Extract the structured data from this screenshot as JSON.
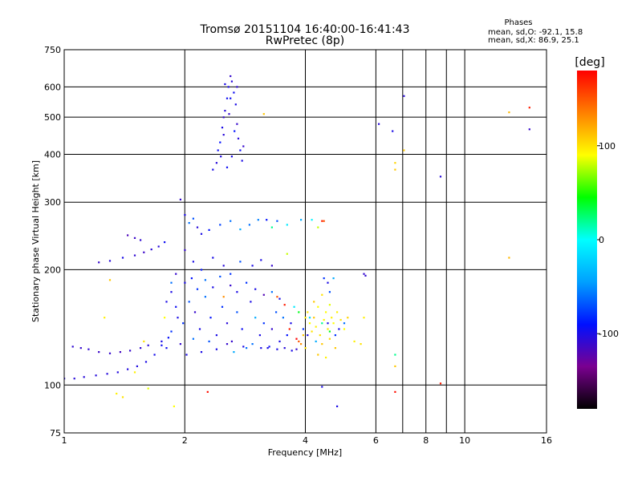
{
  "chart_data": {
    "type": "scatter",
    "title": "Tromsø 20151104 16:40:00-16:41:43",
    "subtitle": "RwPretec (8p)",
    "stats": {
      "heading": "Phases",
      "line_o": "mean, sd,O: -92.1, 15.8",
      "line_x": "mean, sd,X:  86.9, 25.1"
    },
    "xlabel": "Frequency [MHz]",
    "ylabel": "Stationary phase Virtual Height [km]",
    "x_scale": "log",
    "y_scale": "log",
    "xlim": [
      1,
      16
    ],
    "ylim": [
      75,
      750
    ],
    "x_ticks": [
      1,
      2,
      4,
      6,
      8,
      10,
      16
    ],
    "x_tick_labels": [
      "1",
      "2",
      "4",
      "6",
      "8",
      "10",
      "16"
    ],
    "x_grid": [
      2,
      4,
      6,
      7,
      8,
      9,
      10
    ],
    "y_ticks": [
      75,
      100,
      200,
      300,
      400,
      500,
      600,
      750
    ],
    "y_tick_labels": [
      "75",
      "100",
      "200",
      "300",
      "400",
      "500",
      "600",
      "750"
    ],
    "grid": true,
    "colorbar": {
      "label": "[deg]",
      "range": [
        -180,
        180
      ],
      "ticks": [
        100,
        0,
        -100
      ],
      "tick_labels": [
        "100",
        "0",
        "-100"
      ],
      "colors": [
        "#000000",
        "#7a0090",
        "#0010ff",
        "#00a0ff",
        "#00ffff",
        "#00ff00",
        "#ffff00",
        "#ff8000",
        "#ff0000"
      ]
    },
    "series": [
      {
        "points": [
          [
            1.0,
            104,
            -105
          ],
          [
            1.06,
            104,
            -105
          ],
          [
            1.12,
            105,
            -105
          ],
          [
            1.2,
            106,
            -104
          ],
          [
            1.28,
            107,
            -104
          ],
          [
            1.36,
            108,
            -103
          ],
          [
            1.44,
            110,
            -103
          ],
          [
            1.52,
            112,
            -102
          ],
          [
            1.6,
            115,
            -100
          ],
          [
            1.68,
            120,
            -98
          ],
          [
            1.75,
            127,
            -95
          ],
          [
            1.82,
            133,
            -92
          ],
          [
            1.05,
            126,
            -108
          ],
          [
            1.1,
            125,
            -110
          ],
          [
            1.15,
            124,
            -108
          ],
          [
            1.22,
            122,
            -112
          ],
          [
            1.3,
            121,
            -110
          ],
          [
            1.38,
            122,
            -115
          ],
          [
            1.46,
            123,
            -110
          ],
          [
            1.55,
            125,
            -108
          ],
          [
            1.62,
            127,
            -106
          ],
          [
            1.22,
            209,
            -110
          ],
          [
            1.3,
            211,
            -105
          ],
          [
            1.4,
            215,
            -100
          ],
          [
            1.5,
            218,
            -108
          ],
          [
            1.58,
            222,
            -112
          ],
          [
            1.65,
            226,
            -106
          ],
          [
            1.72,
            230,
            -105
          ],
          [
            1.78,
            236,
            -95
          ],
          [
            1.44,
            246,
            -118
          ],
          [
            1.5,
            242,
            -112
          ],
          [
            1.55,
            239,
            -108
          ],
          [
            1.26,
            150,
            95
          ],
          [
            1.3,
            188,
            110
          ],
          [
            1.35,
            95,
            95
          ],
          [
            1.4,
            93,
            100
          ],
          [
            1.5,
            108,
            95
          ],
          [
            1.58,
            130,
            100
          ],
          [
            1.62,
            98,
            85
          ],
          [
            1.88,
            88,
            90
          ],
          [
            2.28,
            96,
            175
          ],
          [
            6.7,
            96,
            175
          ],
          [
            8.7,
            101,
            170
          ],
          [
            4.8,
            88,
            -100
          ],
          [
            4.4,
            99,
            -100
          ],
          [
            2.35,
            365,
            -100
          ],
          [
            2.4,
            380,
            -105
          ],
          [
            2.42,
            410,
            -95
          ],
          [
            2.45,
            430,
            -90
          ],
          [
            2.48,
            470,
            -100
          ],
          [
            2.5,
            500,
            -110
          ],
          [
            2.52,
            520,
            -105
          ],
          [
            2.55,
            560,
            -95
          ],
          [
            2.57,
            600,
            -100
          ],
          [
            2.6,
            640,
            -110
          ],
          [
            2.62,
            620,
            -105
          ],
          [
            2.65,
            580,
            -95
          ],
          [
            2.68,
            540,
            -100
          ],
          [
            2.7,
            480,
            -110
          ],
          [
            2.72,
            440,
            -105
          ],
          [
            2.75,
            410,
            -95
          ],
          [
            2.78,
            385,
            -100
          ],
          [
            2.8,
            420,
            -110
          ],
          [
            2.55,
            370,
            -95
          ],
          [
            2.62,
            395,
            -100
          ],
          [
            2.5,
            450,
            -105
          ],
          [
            2.58,
            510,
            -110
          ],
          [
            2.66,
            460,
            -90
          ],
          [
            2.7,
            600,
            -108
          ],
          [
            2.52,
            610,
            -100
          ],
          [
            2.46,
            395,
            -102
          ],
          [
            2.6,
            560,
            -96
          ],
          [
            1.95,
            305,
            -110
          ],
          [
            2.0,
            278,
            -100
          ],
          [
            2.05,
            265,
            -60
          ],
          [
            2.1,
            272,
            -70
          ],
          [
            2.15,
            258,
            -105
          ],
          [
            2.2,
            248,
            -100
          ],
          [
            2.3,
            254,
            -90
          ],
          [
            2.45,
            262,
            -75
          ],
          [
            2.6,
            268,
            -60
          ],
          [
            2.75,
            255,
            -40
          ],
          [
            2.9,
            262,
            -60
          ],
          [
            3.05,
            270,
            -55
          ],
          [
            3.2,
            270,
            -90
          ],
          [
            3.3,
            258,
            20
          ],
          [
            3.4,
            268,
            -70
          ],
          [
            3.6,
            262,
            -10
          ],
          [
            3.9,
            270,
            -40
          ],
          [
            4.15,
            270,
            -5
          ],
          [
            4.45,
            268,
            150
          ],
          [
            4.3,
            258,
            80
          ],
          [
            2.0,
            225,
            -110
          ],
          [
            2.1,
            210,
            -100
          ],
          [
            2.2,
            200,
            -90
          ],
          [
            2.35,
            215,
            -100
          ],
          [
            2.5,
            205,
            -105
          ],
          [
            2.6,
            195,
            -80
          ],
          [
            2.75,
            210,
            -70
          ],
          [
            2.95,
            205,
            -100
          ],
          [
            3.1,
            212,
            -100
          ],
          [
            3.3,
            205,
            -110
          ],
          [
            3.6,
            220,
            80
          ],
          [
            1.85,
            175,
            -100
          ],
          [
            1.9,
            160,
            -95
          ],
          [
            1.92,
            150,
            -100
          ],
          [
            1.98,
            145,
            -80
          ],
          [
            2.05,
            165,
            -70
          ],
          [
            2.12,
            155,
            -110
          ],
          [
            2.18,
            140,
            -100
          ],
          [
            2.25,
            170,
            -60
          ],
          [
            2.32,
            150,
            -90
          ],
          [
            2.4,
            135,
            -100
          ],
          [
            2.48,
            160,
            -80
          ],
          [
            2.55,
            145,
            -105
          ],
          [
            2.62,
            130,
            -110
          ],
          [
            2.7,
            155,
            -70
          ],
          [
            2.78,
            140,
            -95
          ],
          [
            2.85,
            125,
            -60
          ],
          [
            2.92,
            165,
            -100
          ],
          [
            3.0,
            150,
            -40
          ],
          [
            3.08,
            135,
            -100
          ],
          [
            3.15,
            145,
            -80
          ],
          [
            3.22,
            125,
            -100
          ],
          [
            3.3,
            140,
            -110
          ],
          [
            3.38,
            155,
            -70
          ],
          [
            3.45,
            130,
            -100
          ],
          [
            3.52,
            150,
            -60
          ],
          [
            3.6,
            135,
            -90
          ],
          [
            3.68,
            145,
            -100
          ],
          [
            1.75,
            130,
            -100
          ],
          [
            1.8,
            125,
            -95
          ],
          [
            1.85,
            138,
            -80
          ],
          [
            1.95,
            128,
            -110
          ],
          [
            2.02,
            120,
            -100
          ],
          [
            2.1,
            132,
            -60
          ],
          [
            2.2,
            122,
            -100
          ],
          [
            2.3,
            130,
            -70
          ],
          [
            2.4,
            124,
            -100
          ],
          [
            2.55,
            128,
            -110
          ],
          [
            2.65,
            122,
            -40
          ],
          [
            2.8,
            126,
            -100
          ],
          [
            2.95,
            128,
            -60
          ],
          [
            3.1,
            125,
            -100
          ],
          [
            3.25,
            126,
            -95
          ],
          [
            3.4,
            124,
            -100
          ],
          [
            3.55,
            125,
            -105
          ],
          [
            3.7,
            123,
            -100
          ],
          [
            3.8,
            124,
            -110
          ],
          [
            1.9,
            195,
            -110
          ],
          [
            2.0,
            185,
            -100
          ],
          [
            2.08,
            190,
            -90
          ],
          [
            2.15,
            178,
            -80
          ],
          [
            2.25,
            188,
            -60
          ],
          [
            2.35,
            180,
            -100
          ],
          [
            2.45,
            192,
            -70
          ],
          [
            2.6,
            182,
            -110
          ],
          [
            2.7,
            175,
            -100
          ],
          [
            2.85,
            185,
            -80
          ],
          [
            3.0,
            178,
            -100
          ],
          [
            3.15,
            172,
            -120
          ],
          [
            3.3,
            175,
            -60
          ],
          [
            3.45,
            168,
            -100
          ],
          [
            3.55,
            162,
            170
          ],
          [
            1.8,
            165,
            -100
          ],
          [
            1.78,
            150,
            90
          ],
          [
            1.85,
            185,
            -60
          ],
          [
            2.5,
            170,
            130
          ],
          [
            3.4,
            170,
            150
          ],
          [
            3.65,
            140,
            170
          ],
          [
            3.75,
            160,
            -10
          ],
          [
            3.85,
            155,
            40
          ],
          [
            3.8,
            132,
            180
          ],
          [
            3.85,
            130,
            150
          ],
          [
            3.9,
            128,
            130
          ],
          [
            3.95,
            135,
            110
          ],
          [
            4.0,
            150,
            95
          ],
          [
            4.05,
            155,
            100
          ],
          [
            4.1,
            145,
            90
          ],
          [
            4.15,
            138,
            100
          ],
          [
            4.2,
            150,
            110
          ],
          [
            4.25,
            142,
            95
          ],
          [
            4.3,
            160,
            90
          ],
          [
            4.35,
            135,
            100
          ],
          [
            4.4,
            128,
            110
          ],
          [
            4.45,
            148,
            95
          ],
          [
            4.5,
            155,
            90
          ],
          [
            4.55,
            140,
            100
          ],
          [
            4.6,
            132,
            105
          ],
          [
            4.65,
            150,
            95
          ],
          [
            4.7,
            145,
            90
          ],
          [
            4.75,
            125,
            110
          ],
          [
            4.8,
            155,
            95
          ],
          [
            4.9,
            148,
            100
          ],
          [
            5.0,
            140,
            90
          ],
          [
            5.1,
            150,
            105
          ],
          [
            5.3,
            130,
            95
          ],
          [
            5.5,
            128,
            100
          ],
          [
            5.6,
            150,
            95
          ],
          [
            4.2,
            165,
            110
          ],
          [
            4.4,
            172,
            100
          ],
          [
            4.6,
            162,
            85
          ],
          [
            4.0,
            125,
            100
          ],
          [
            4.3,
            120,
            110
          ],
          [
            4.5,
            118,
            95
          ],
          [
            3.95,
            140,
            -80
          ],
          [
            4.05,
            135,
            -100
          ],
          [
            4.1,
            150,
            -20
          ],
          [
            4.25,
            130,
            -40
          ],
          [
            4.55,
            145,
            -100
          ],
          [
            4.75,
            135,
            -80
          ],
          [
            4.85,
            140,
            -100
          ],
          [
            5.0,
            145,
            -60
          ],
          [
            4.4,
            145,
            20
          ],
          [
            4.6,
            138,
            40
          ],
          [
            4.45,
            190,
            -80
          ],
          [
            4.55,
            185,
            -100
          ],
          [
            4.7,
            190,
            -40
          ],
          [
            4.6,
            175,
            -70
          ],
          [
            5.6,
            195,
            -110
          ],
          [
            5.65,
            193,
            -108
          ],
          [
            3.15,
            510,
            110
          ],
          [
            4.4,
            268,
            170
          ],
          [
            6.1,
            480,
            -105
          ],
          [
            6.6,
            460,
            -100
          ],
          [
            7.05,
            568,
            -105
          ],
          [
            7.05,
            410,
            110
          ],
          [
            6.7,
            365,
            110
          ],
          [
            6.7,
            380,
            105
          ],
          [
            8.7,
            350,
            -105
          ],
          [
            6.7,
            120,
            20
          ],
          [
            6.7,
            112,
            110
          ],
          [
            12.9,
            515,
            115
          ],
          [
            14.5,
            530,
            170
          ],
          [
            14.5,
            465,
            -110
          ],
          [
            12.9,
            215,
            115
          ]
        ]
      }
    ]
  }
}
